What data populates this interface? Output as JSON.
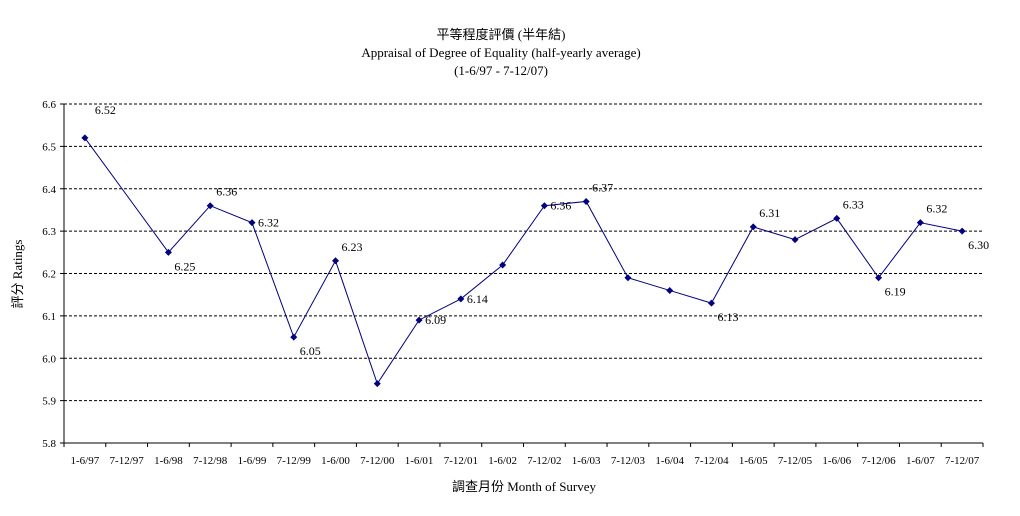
{
  "chart_data": {
    "type": "line",
    "title": "平等程度評價 (半年結)",
    "subtitle": "Appraisal of Degree of Equality (half-yearly average)",
    "period": "(1-6/97 - 7-12/07)",
    "xlabel": "調查月份 Month of Survey",
    "ylabel": "評分 Ratings",
    "ylim": [
      5.8,
      6.6
    ],
    "yticks": [
      "5.8",
      "5.9",
      "6.0",
      "6.1",
      "6.2",
      "6.3",
      "6.4",
      "6.5",
      "6.6"
    ],
    "grid": true,
    "categories": [
      "1-6/97",
      "7-12/97",
      "1-6/98",
      "7-12/98",
      "1-6/99",
      "7-12/99",
      "1-6/00",
      "7-12/00",
      "1-6/01",
      "7-12/01",
      "1-6/02",
      "7-12/02",
      "1-6/03",
      "7-12/03",
      "1-6/04",
      "7-12/04",
      "1-6/05",
      "7-12/05",
      "1-6/06",
      "7-12/06",
      "1-6/07",
      "7-12/07"
    ],
    "series": [
      {
        "color": "#000080",
        "points": [
          {
            "x": "1-6/97",
            "y": 6.52,
            "label": "6.52"
          },
          {
            "x": "1-6/98",
            "y": 6.25,
            "label": "6.25"
          },
          {
            "x": "7-12/98",
            "y": 6.36,
            "label": "6.36"
          },
          {
            "x": "1-6/99",
            "y": 6.32,
            "label": "6.32"
          },
          {
            "x": "7-12/99",
            "y": 6.05,
            "label": "6.05"
          },
          {
            "x": "1-6/00",
            "y": 6.23,
            "label": "6.23"
          },
          {
            "x": "7-12/00",
            "y": 5.94,
            "label": ""
          },
          {
            "x": "1-6/01",
            "y": 6.09,
            "label": "6.09"
          },
          {
            "x": "7-12/01",
            "y": 6.14,
            "label": "6.14"
          },
          {
            "x": "1-6/02",
            "y": 6.22,
            "label": ""
          },
          {
            "x": "7-12/02",
            "y": 6.36,
            "label": "6.36"
          },
          {
            "x": "1-6/03",
            "y": 6.37,
            "label": "6.37"
          },
          {
            "x": "7-12/03",
            "y": 6.19,
            "label": ""
          },
          {
            "x": "1-6/04",
            "y": 6.16,
            "label": ""
          },
          {
            "x": "7-12/04",
            "y": 6.13,
            "label": "6.13"
          },
          {
            "x": "1-6/05",
            "y": 6.31,
            "label": "6.31"
          },
          {
            "x": "7-12/05",
            "y": 6.28,
            "label": ""
          },
          {
            "x": "1-6/06",
            "y": 6.33,
            "label": "6.33"
          },
          {
            "x": "7-12/06",
            "y": 6.19,
            "label": "6.19"
          },
          {
            "x": "1-6/07",
            "y": 6.32,
            "label": "6.32"
          },
          {
            "x": "7-12/07",
            "y": 6.3,
            "label": "6.30"
          }
        ]
      }
    ]
  }
}
